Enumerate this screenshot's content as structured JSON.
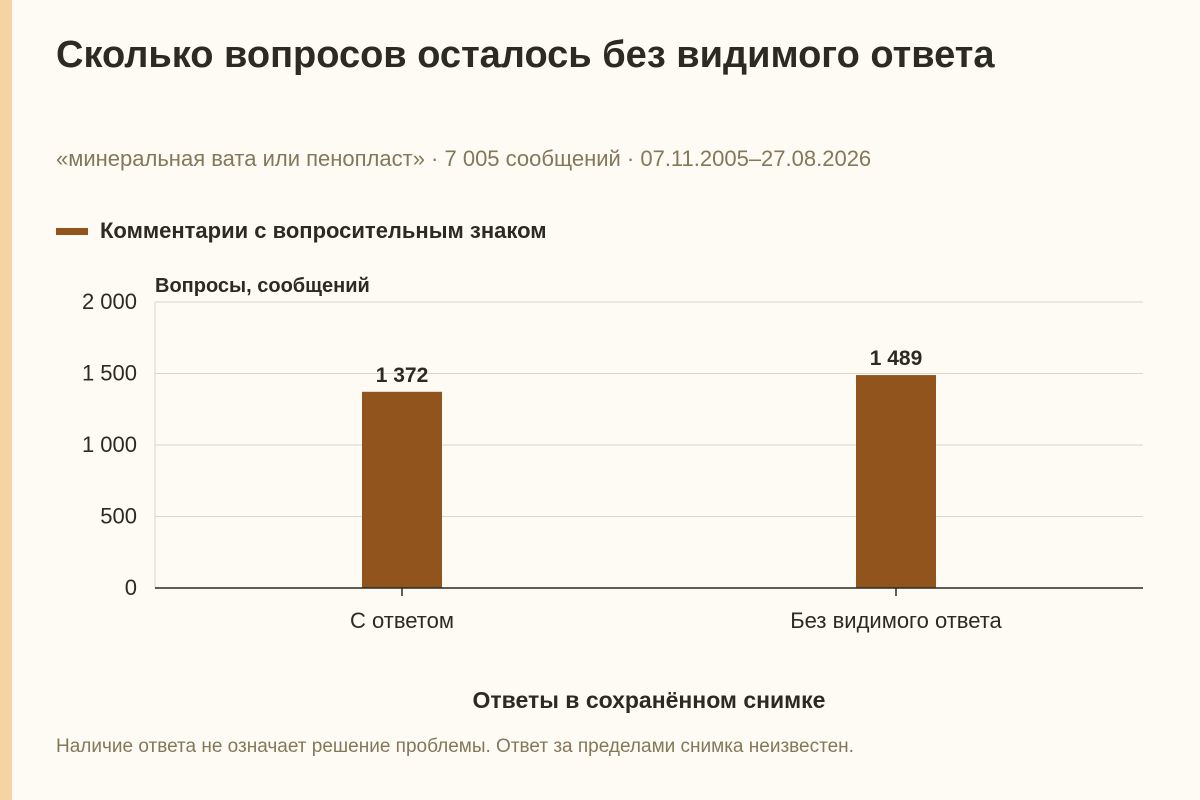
{
  "title": "Сколько вопросов осталось без видимого ответа",
  "subtitle": "«минеральная вата или пенопласт» · 7 005 сообщений · 07.11.2005–27.08.2026",
  "footnote": "Наличие ответа не означает решение проблемы. Ответ за пределами снимка неизвестен.",
  "colors": {
    "bar": "#92541d",
    "grid": "#d9d6cc",
    "axis": "#2b2b22",
    "text": "#2b2b22"
  },
  "chart_data": {
    "type": "bar",
    "title": "Сколько вопросов осталось без видимого ответа",
    "subtitle": "«минеральная вата или пенопласт» · 7 005 сообщений · 07.11.2005–27.08.2026",
    "xlabel": "Ответы в сохранённом снимке",
    "ylabel": "Вопросы, сообщений",
    "ylim": [
      0,
      2000
    ],
    "yticks": [
      0,
      500,
      1000,
      1500,
      2000
    ],
    "ytick_labels": [
      "0",
      "500",
      "1 000",
      "1 500",
      "2 000"
    ],
    "grid": true,
    "legend_placement": "top-left",
    "categories": [
      "С ответом",
      "Без видимого ответа"
    ],
    "series": [
      {
        "name": "Комментарии с вопросительным знаком",
        "values": [
          1372,
          1489
        ],
        "labels": [
          "1 372",
          "1 489"
        ]
      }
    ]
  }
}
